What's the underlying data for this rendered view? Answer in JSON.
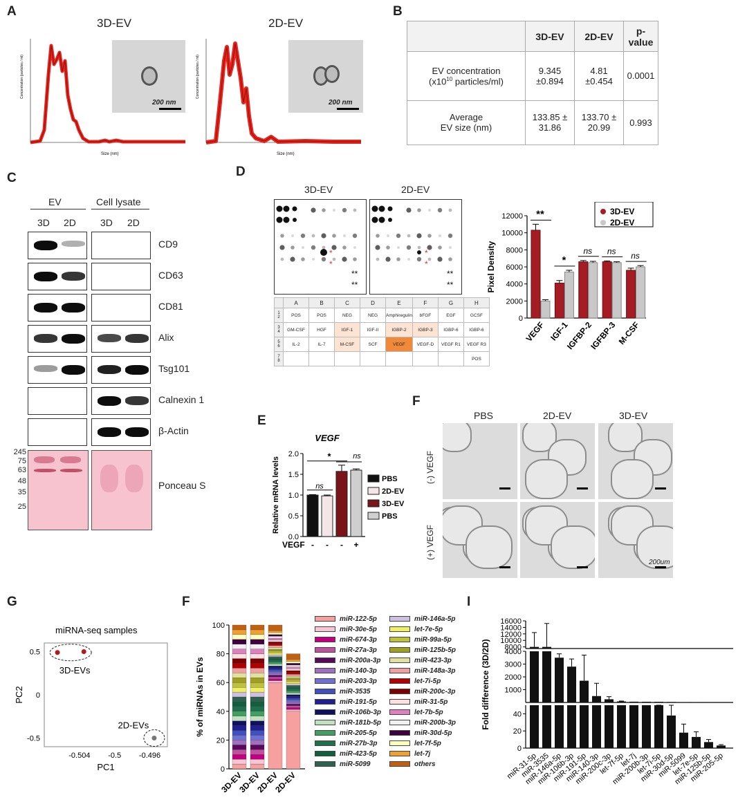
{
  "panels": {
    "A": "A",
    "B": "B",
    "C": "C",
    "D": "D",
    "E": "E",
    "F1": "F",
    "G": "G",
    "F2": "F",
    "I": "I"
  },
  "panel_a": {
    "title_3d": "3D-EV",
    "title_2d": "2D-EV",
    "xlabel": "Size (nm)",
    "ylabel": "Concentration (particles / ml)",
    "scalebar": "200 nm",
    "xticks": [
      "0",
      "100",
      "200",
      "300",
      "400",
      "500",
      "600",
      "700",
      "800",
      "900",
      "1000"
    ]
  },
  "panel_b": {
    "headers": [
      "",
      "3D-EV",
      "2D-EV",
      "p-value"
    ],
    "rows": [
      {
        "label1": "EV concentration",
        "label2": "(x10",
        "sup": "10",
        "label3": " particles/ml)",
        "v3d": "9.345\n±0.894",
        "v2d": "4.81\n±0.454",
        "p": "0.0001"
      },
      {
        "label1": "Average",
        "label2": "EV size (nm)",
        "v3d": "133.85 ±\n31.86",
        "v2d": "133.70 ±\n20.99",
        "p": "0.993"
      }
    ]
  },
  "panel_c": {
    "group1": "EV",
    "group2": "Cell lysate",
    "lanes": [
      "3D",
      "2D",
      "3D",
      "2D"
    ],
    "proteins": [
      "CD9",
      "CD63",
      "CD81",
      "Alix",
      "Tsg101",
      "Calnexin 1",
      "β-Actin"
    ],
    "ponceau": "Ponceau S",
    "mw": [
      "245",
      "75",
      "63",
      "48",
      "35",
      "25"
    ]
  },
  "panel_d": {
    "array_3d": "3D-EV",
    "array_2d": "2D-EV",
    "cols": [
      "A",
      "B",
      "C",
      "D",
      "E",
      "F",
      "G",
      "H"
    ],
    "rows": [
      "1",
      "2",
      "3",
      "4",
      "5",
      "6",
      "7",
      "8"
    ],
    "grid": [
      [
        "POS",
        "POS",
        "NEG",
        "NEG",
        "Amphiregulin",
        "bFGF",
        "EGF",
        "GCSF"
      ],
      [
        "GM-CSF",
        "HGF",
        "IGF-1",
        "IGF-II",
        "IGBP-2",
        "IGBP-3",
        "IGBP-6",
        "IGBP-6"
      ],
      [
        "IL-2",
        "IL-7",
        "M-CSF",
        "SCF",
        "VEGF",
        "VEGF-D",
        "VEGF R1",
        "VEGF R3"
      ],
      [
        "",
        "",
        "",
        "",
        "",
        "",
        "",
        "POS"
      ]
    ]
  },
  "chart_data": [
    {
      "id": "D-bar",
      "type": "bar",
      "categories": [
        "VEGF",
        "IGF-1",
        "IGFBP-2",
        "IGFBP-3",
        "M-CSF"
      ],
      "series": [
        {
          "name": "3D-EV",
          "values": [
            10300,
            4100,
            6600,
            6600,
            5600
          ]
        },
        {
          "name": "2D-EV",
          "values": [
            2000,
            5400,
            6500,
            6500,
            6000
          ]
        }
      ],
      "errors": [
        [
          700,
          300,
          150,
          100,
          250
        ],
        [
          150,
          200,
          150,
          100,
          150
        ]
      ],
      "ylabel": "Pixel Density",
      "ylim": [
        0,
        12000
      ],
      "yticks": [
        "0",
        "2000",
        "4000",
        "6000",
        "8000",
        "10000",
        "12000"
      ],
      "sig": [
        "**",
        "*",
        "ns",
        "ns",
        "ns"
      ],
      "colors": [
        "#a51c24",
        "#c8c8c8"
      ]
    },
    {
      "id": "E-bar",
      "type": "bar",
      "title": "VEGF",
      "categories": [
        "PBS",
        "2D-EV",
        "3D-EV",
        "PBS"
      ],
      "values": [
        1.0,
        0.98,
        1.57,
        1.6
      ],
      "errors": [
        0.01,
        0.02,
        0.15,
        0.03
      ],
      "ylabel": "Relative mRNA levels",
      "ylim": [
        0,
        2.0
      ],
      "yticks": [
        "0.0",
        "0.5",
        "1.0",
        "1.5",
        "2.0"
      ],
      "xrow_label": "VEGF",
      "xrow": [
        "-",
        "-",
        "-",
        "+"
      ],
      "sig": [
        "ns",
        "*",
        "ns"
      ],
      "colors": [
        "#111111",
        "#f4e6e6",
        "#7a1418",
        "#cfcfcf"
      ]
    },
    {
      "id": "G-pca",
      "type": "scatter",
      "title": "miRNA-seq samples",
      "xlabel": "PC1",
      "ylabel": "PC2",
      "xticks": [
        "-0.504",
        "-0.5",
        "-0.496"
      ],
      "yticks": [
        "0.5",
        "0",
        "-0.5"
      ],
      "series": [
        {
          "name": "3D-EVs",
          "x": [
            -0.5065,
            -0.5035
          ],
          "y": [
            0.49,
            0.5
          ]
        },
        {
          "name": "2D-EVs",
          "x": [
            -0.4955
          ],
          "y": [
            -0.5
          ]
        }
      ]
    },
    {
      "id": "F-stack",
      "type": "bar",
      "categories": [
        "3D-EV",
        "3D-EV",
        "2D-EV",
        "2D-EV"
      ],
      "ylabel": "% of miRNAs in EVs",
      "ylim": [
        0,
        100
      ],
      "yticks": [
        "0",
        "20",
        "40",
        "60",
        "80",
        "100"
      ],
      "legend": [
        "miR-122-5p",
        "miR-30e-5p",
        "miR-674-3p",
        "miR-27a-3p",
        "miR-200a-3p",
        "miR-140-3p",
        "miR-203-3p",
        "miR-3535",
        "miR-191-5p",
        "miR-106b-3p",
        "miR-181b-5p",
        "miR-205-5p",
        "miR-27b-3p",
        "miR-423-5p",
        "miR-5099",
        "miR-146a-5p",
        "let-7e-5p",
        "miR-99a-5p",
        "miR-125b-5p",
        "miR-423-3p",
        "miR-148a-3p",
        "let-7i-5p",
        "miR-200c-3p",
        "miR-31-5p",
        "let-7b-5p",
        "miR-200b-3p",
        "miR-30d-5p",
        "let-7f-5p",
        "let-7j",
        "others"
      ]
    },
    {
      "id": "I-bar",
      "type": "bar",
      "categories": [
        "miR-31-5p",
        "miR-3535",
        "miR-146a-5p",
        "miR-106b-3p",
        "miR-191-5p",
        "miR-140-3p",
        "miR-200c-3p",
        "let-7f-5p",
        "let-7j",
        "miR-200b-3p",
        "let-7i-5p",
        "miR-30d-5p",
        "miR-5099",
        "let-7e-5p",
        "miR-125b-5p",
        "miR-205-5p"
      ],
      "values": [
        8000,
        8000,
        3500,
        2800,
        1700,
        500,
        250,
        80,
        60,
        55,
        50,
        38,
        18,
        13,
        7,
        3
      ],
      "ylabel": "Fold difference (3D/2D)",
      "yticks_top": [
        "8000",
        "10000",
        "12000",
        "14000",
        "16000"
      ],
      "yticks_mid": [
        "1000",
        "2000",
        "3000",
        "4000"
      ],
      "yticks_bot": [
        "0",
        "20",
        "40"
      ]
    }
  ],
  "panel_f": {
    "cols": [
      "PBS",
      "2D-EV",
      "3D-EV"
    ],
    "rows": [
      "(-) VEGF",
      "(+) VEGF"
    ],
    "scalebar": "200um"
  }
}
